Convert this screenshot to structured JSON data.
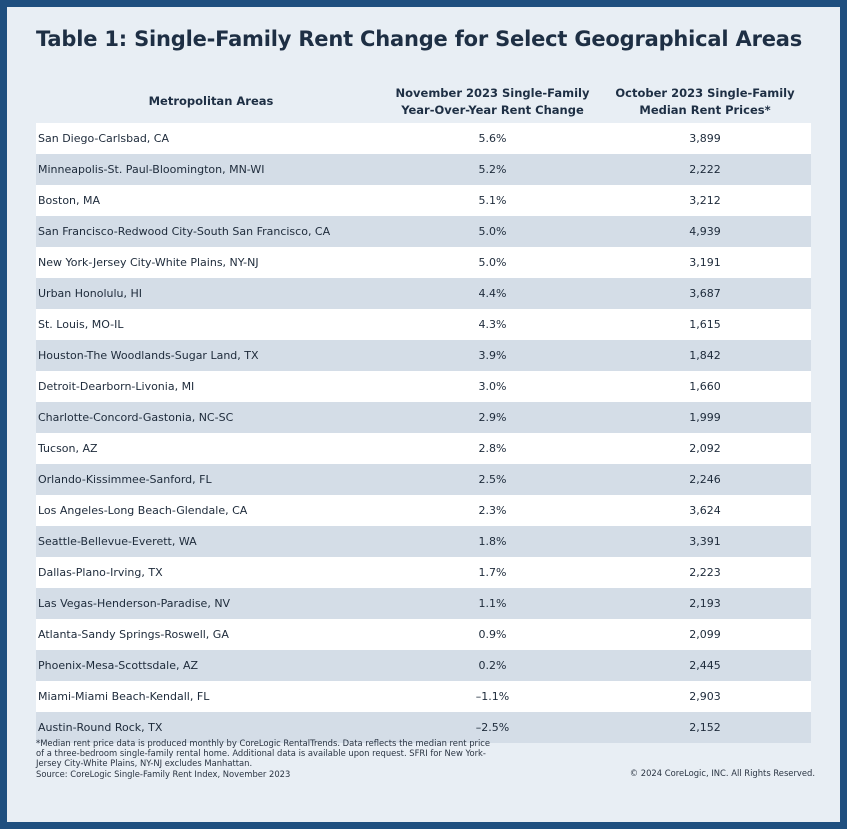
{
  "title": "Table 1: Single-Family Rent Change for Select Geographical Areas",
  "headers": {
    "area": "Metropolitan Areas",
    "change_line1": "November 2023 Single-Family",
    "change_line2": "Year-Over-Year Rent Change",
    "price_line1": "October 2023 Single-Family",
    "price_line2": "Median Rent Prices*"
  },
  "rows": [
    {
      "area": "San Diego-Carlsbad, CA",
      "change": "5.6%",
      "price": "3,899"
    },
    {
      "area": "Minneapolis-St. Paul-Bloomington, MN-WI",
      "change": "5.2%",
      "price": "2,222"
    },
    {
      "area": "Boston, MA",
      "change": "5.1%",
      "price": "3,212"
    },
    {
      "area": "San Francisco-Redwood City-South San Francisco, CA",
      "change": "5.0%",
      "price": "4,939"
    },
    {
      "area": "New York-Jersey City-White Plains, NY-NJ",
      "change": "5.0%",
      "price": "3,191"
    },
    {
      "area": "Urban Honolulu, HI",
      "change": "4.4%",
      "price": "3,687"
    },
    {
      "area": "St. Louis, MO-IL",
      "change": "4.3%",
      "price": "1,615"
    },
    {
      "area": "Houston-The Woodlands-Sugar Land, TX",
      "change": "3.9%",
      "price": "1,842"
    },
    {
      "area": "Detroit-Dearborn-Livonia, MI",
      "change": "3.0%",
      "price": "1,660"
    },
    {
      "area": "Charlotte-Concord-Gastonia, NC-SC",
      "change": "2.9%",
      "price": "1,999"
    },
    {
      "area": "Tucson, AZ",
      "change": "2.8%",
      "price": "2,092"
    },
    {
      "area": "Orlando-Kissimmee-Sanford, FL",
      "change": "2.5%",
      "price": "2,246"
    },
    {
      "area": "Los Angeles-Long Beach-Glendale, CA",
      "change": "2.3%",
      "price": "3,624"
    },
    {
      "area": "Seattle-Bellevue-Everett, WA",
      "change": "1.8%",
      "price": "3,391"
    },
    {
      "area": "Dallas-Plano-Irving, TX",
      "change": "1.7%",
      "price": "2,223"
    },
    {
      "area": "Las Vegas-Henderson-Paradise, NV",
      "change": "1.1%",
      "price": "2,193"
    },
    {
      "area": "Atlanta-Sandy Springs-Roswell, GA",
      "change": "0.9%",
      "price": "2,099"
    },
    {
      "area": "Phoenix-Mesa-Scottsdale, AZ",
      "change": "0.2%",
      "price": "2,445"
    },
    {
      "area": "Miami-Miami Beach-Kendall, FL",
      "change": "–1.1%",
      "price": "2,903"
    },
    {
      "area": "Austin-Round Rock, TX",
      "change": "–2.5%",
      "price": "2,152"
    }
  ],
  "footnote": {
    "line1": "*Median rent price data is produced monthly by CoreLogic RentalTrends. Data reflects the median rent price",
    "line2": "of a three-bedroom single-family rental home. Additional data is available upon request. SFRI for New York-",
    "line3": "Jersey City-White Plains, NY-NJ excludes Manhattan.",
    "line4": "Source: CoreLogic Single-Family Rent Index, November 2023"
  },
  "copyright": "© 2024 CoreLogic, INC. All Rights Reserved.",
  "colors": {
    "border": "#1f4f7f",
    "background": "#e8eef4",
    "row_stripe": "#d4dde7",
    "row_white": "#ffffff"
  }
}
